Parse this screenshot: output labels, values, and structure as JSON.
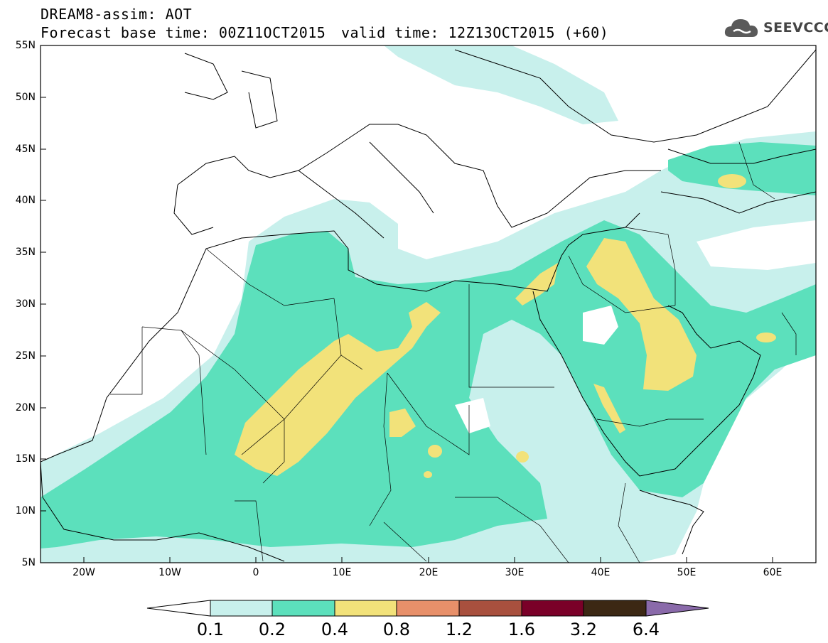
{
  "header": {
    "line1": "DREAM8-assim: AOT",
    "line2": "Forecast base time: 00Z11OCT2015",
    "line3": "valid time: 12Z13OCT2015 (+60)"
  },
  "logo": {
    "text": "SEEVCCC",
    "icon": "cloud-icon"
  },
  "map": {
    "lon_range": [
      -25,
      65
    ],
    "lat_range": [
      5,
      55
    ],
    "lat_labels": [
      "55N",
      "50N",
      "45N",
      "40N",
      "35N",
      "30N",
      "25N",
      "20N",
      "15N",
      "10N",
      "5N"
    ],
    "lon_labels": [
      "20W",
      "10W",
      "0",
      "10E",
      "20E",
      "30E",
      "40E",
      "50E",
      "60E"
    ]
  },
  "colorbar": {
    "labels": [
      "0.1",
      "0.2",
      "0.4",
      "0.8",
      "1.2",
      "1.6",
      "3.2",
      "6.4"
    ],
    "colors": [
      "#ffffff",
      "#c8f0ec",
      "#5ce0bc",
      "#f2e27a",
      "#e8906a",
      "#a8503e",
      "#7a0028",
      "#3c2814",
      "#8a6aaa"
    ]
  }
}
